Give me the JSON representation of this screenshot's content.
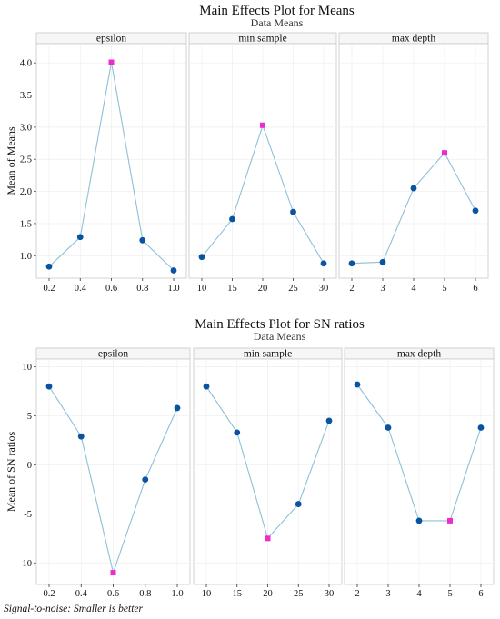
{
  "colors": {
    "line": "#8ec0d8",
    "point": "#0a53a0",
    "highlight": "#ee2ccc",
    "panel_border": "#c8c8c8",
    "strip_bg": "#f6f6f6",
    "grid": "#eeeeee"
  },
  "footnote": "Signal-to-noise: Smaller is better",
  "chart_data": [
    {
      "type": "line",
      "title": "Main Effects Plot for Means",
      "subtitle": "Data Means",
      "ylabel": "Mean of Means",
      "ylim": [
        0.65,
        4.3
      ],
      "yticks": [
        1.0,
        1.5,
        2.0,
        2.5,
        3.0,
        3.5,
        4.0
      ],
      "ytick_labels": [
        "1.0",
        "1.5",
        "2.0",
        "2.5",
        "3.0",
        "3.5",
        "4.0"
      ],
      "grid": true,
      "panels": [
        {
          "label": "epsilon",
          "x": [
            "0.2",
            "0.4",
            "0.6",
            "0.8",
            "1.0"
          ],
          "y": [
            0.83,
            1.29,
            4.01,
            1.24,
            0.77
          ],
          "highlight_index": 2
        },
        {
          "label": "min sample",
          "x": [
            "10",
            "15",
            "20",
            "25",
            "30"
          ],
          "y": [
            0.98,
            1.57,
            3.03,
            1.68,
            0.88
          ],
          "highlight_index": 2
        },
        {
          "label": "max depth",
          "x": [
            "2",
            "3",
            "4",
            "5",
            "6"
          ],
          "y": [
            0.88,
            0.9,
            2.05,
            2.6,
            1.7
          ],
          "highlight_index": 3
        }
      ]
    },
    {
      "type": "line",
      "title": "Main Effects Plot for SN ratios",
      "subtitle": "Data Means",
      "ylabel": "Mean of SN ratios",
      "ylim": [
        -12.2,
        10.8
      ],
      "yticks": [
        -10,
        -5,
        0,
        5,
        10
      ],
      "ytick_labels": [
        "-10",
        "-5",
        "0",
        "5",
        "10"
      ],
      "grid": true,
      "panels": [
        {
          "label": "epsilon",
          "x": [
            "0.2",
            "0.4",
            "0.6",
            "0.8",
            "1.0"
          ],
          "y": [
            8.0,
            2.9,
            -11.0,
            -1.5,
            5.8
          ],
          "highlight_index": 2
        },
        {
          "label": "min sample",
          "x": [
            "10",
            "15",
            "20",
            "25",
            "30"
          ],
          "y": [
            8.0,
            3.3,
            -7.5,
            -4.0,
            4.5
          ],
          "highlight_index": 2
        },
        {
          "label": "max depth",
          "x": [
            "2",
            "3",
            "4",
            "5",
            "6"
          ],
          "y": [
            8.2,
            3.8,
            -5.7,
            -5.7,
            3.8
          ],
          "highlight_index": 3
        }
      ]
    }
  ]
}
